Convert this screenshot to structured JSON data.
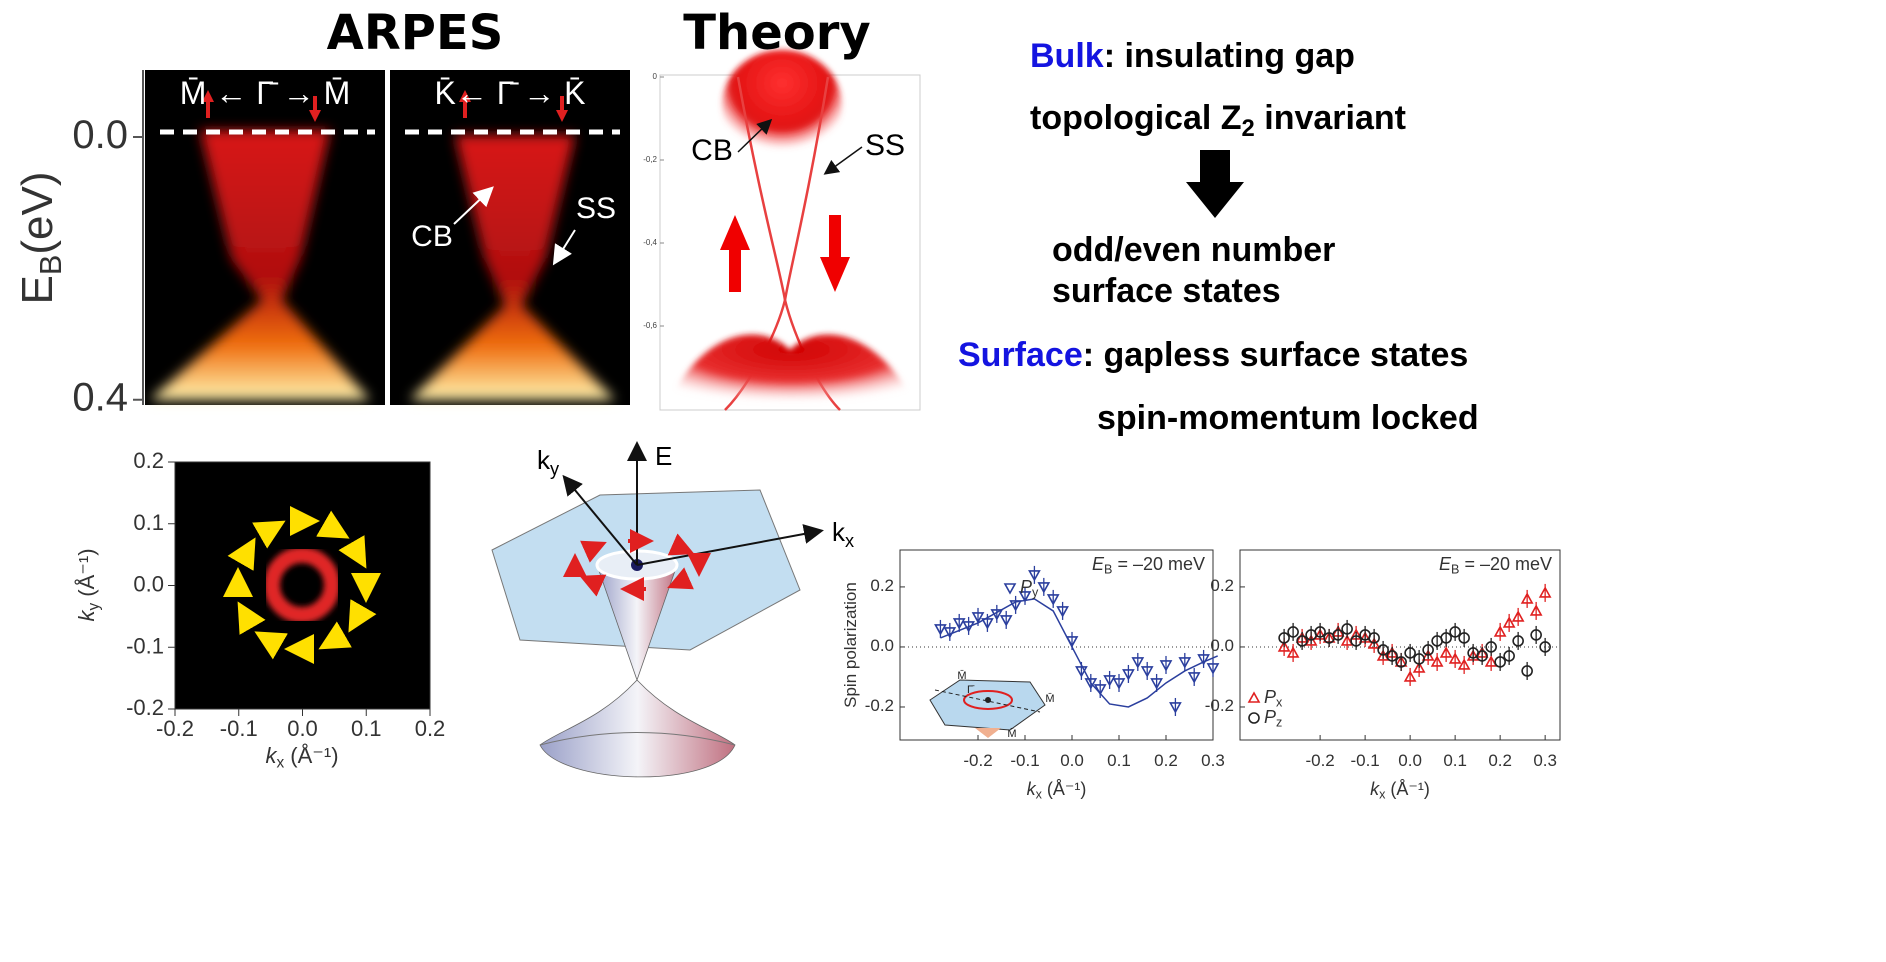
{
  "titles": {
    "arpes": "ARPES",
    "theory": "Theory"
  },
  "arpes": {
    "y_label": [
      "E",
      "B",
      "(eV)"
    ],
    "ylim": [
      -0.102,
      0.408
    ],
    "yticks": [
      {
        "value": 0,
        "label": "0.0"
      },
      {
        "value": 0.4,
        "label": "0.4"
      }
    ],
    "panels": [
      {
        "label": "M̄ ← Γ̄ → M̄"
      },
      {
        "label": "K̄← Γ̄ → K̄",
        "annotations": [
          "CB",
          "SS"
        ]
      }
    ]
  },
  "theory": {
    "annotations": [
      "CB",
      "SS"
    ],
    "ylim": [
      -0.8,
      0
    ],
    "yticks": [
      0,
      {
        "value": -0.2,
        "label": "-0,2"
      },
      {
        "value": -0.4,
        "label": "-0,4"
      },
      {
        "value": -0.6,
        "label": "-0,6"
      }
    ]
  },
  "text_panel": {
    "bulk": {
      "key": "Bulk",
      "rest": ": insulating gap"
    },
    "invariant": [
      "topological Z",
      "2",
      " invariant"
    ],
    "result": [
      "odd/even number",
      "surface states"
    ],
    "surface": {
      "key": "Surface",
      "rest": ": gapless surface states"
    },
    "locked": "spin-momentum locked"
  },
  "fermi_map": {
    "xlim": [
      -0.2,
      0.2
    ],
    "ylim": [
      -0.2,
      0.2
    ],
    "xticks": [
      -0.2,
      -0.1,
      {
        "value": 0,
        "label": "0.0"
      },
      0.1,
      0.2
    ],
    "yticks": [
      -0.2,
      -0.1,
      {
        "value": 0,
        "label": "0.0"
      },
      0.1,
      0.2
    ],
    "x_label": [
      "k",
      "x",
      " (Å⁻¹)"
    ],
    "y_label": [
      "k",
      "y",
      " (Å⁻¹)"
    ]
  },
  "cone": {
    "ky": [
      "k",
      "y"
    ],
    "E": "E",
    "kx": [
      "k",
      "x"
    ]
  },
  "chart_data": [
    {
      "type": "scatter",
      "y_label": "Spin polarization",
      "x_label": [
        "k",
        "x",
        " (Å⁻¹)"
      ],
      "annotation": [
        "E",
        "B",
        " = –20 meV"
      ],
      "xlim": [
        -0.366,
        0.3
      ],
      "ylim": [
        -0.31,
        0.323
      ],
      "xticks": [
        -0.2,
        -0.1,
        {
          "value": 0,
          "label": "0.0"
        },
        0.1,
        0.2,
        0.3
      ],
      "yticks": [
        0.2,
        {
          "value": 0,
          "label": "0.0"
        },
        -0.2
      ],
      "x": [
        -0.28,
        -0.26,
        -0.24,
        -0.22,
        -0.2,
        -0.18,
        -0.16,
        -0.14,
        -0.12,
        -0.1,
        -0.08,
        -0.06,
        -0.04,
        -0.02,
        0,
        0.02,
        0.04,
        0.06,
        0.08,
        0.1,
        0.12,
        0.14,
        0.16,
        0.18,
        0.2,
        0.22,
        0.24,
        0.26,
        0.28,
        0.3
      ],
      "error": 0.03,
      "series": [
        {
          "name": "P",
          "name_sub": "y",
          "color": "#2b3f9e",
          "marker": "triangle-down",
          "values": [
            0.06,
            0.05,
            0.08,
            0.07,
            0.1,
            0.08,
            0.11,
            0.09,
            0.14,
            0.17,
            0.24,
            0.2,
            0.16,
            0.12,
            0.02,
            -0.08,
            -0.12,
            -0.14,
            -0.11,
            -0.12,
            -0.09,
            -0.05,
            -0.08,
            -0.12,
            -0.06,
            -0.2,
            -0.05,
            -0.1,
            -0.04,
            -0.07
          ]
        }
      ],
      "fit": {
        "x": [
          -0.28,
          -0.2,
          -0.12,
          -0.08,
          -0.04,
          0,
          0.04,
          0.08,
          0.12,
          0.16,
          0.2,
          0.24,
          0.28,
          0.31
        ],
        "y": [
          0.03,
          0.08,
          0.15,
          0.16,
          0.12,
          0,
          -0.12,
          -0.19,
          -0.2,
          -0.17,
          -0.12,
          -0.08,
          -0.05,
          -0.03
        ]
      },
      "inset_labels": [
        "M̄",
        "Γ̄",
        "M̄",
        "M̄"
      ]
    },
    {
      "type": "scatter",
      "x_label": [
        "k",
        "x",
        " (Å⁻¹)"
      ],
      "annotation": [
        "E",
        "B",
        " = –20 meV"
      ],
      "xlim": [
        -0.378,
        0.333
      ],
      "ylim": [
        -0.31,
        0.323
      ],
      "xticks": [
        -0.2,
        -0.1,
        {
          "value": 0,
          "label": "0.0"
        },
        0.1,
        0.2,
        0.3
      ],
      "yticks": [
        0.2,
        {
          "value": 0,
          "label": "0.0"
        },
        -0.2
      ],
      "x": [
        -0.28,
        -0.26,
        -0.24,
        -0.22,
        -0.2,
        -0.18,
        -0.16,
        -0.14,
        -0.12,
        -0.1,
        -0.08,
        -0.06,
        -0.04,
        -0.02,
        0,
        0.02,
        0.04,
        0.06,
        0.08,
        0.1,
        0.12,
        0.14,
        0.16,
        0.18,
        0.2,
        0.22,
        0.24,
        0.26,
        0.28,
        0.3
      ],
      "error": 0.03,
      "legend": "lower left",
      "series": [
        {
          "name": "P",
          "name_sub": "x",
          "color": "#e02020",
          "marker": "triangle",
          "values": [
            0,
            -0.02,
            0.03,
            0.02,
            0.04,
            0.03,
            0.05,
            0.02,
            0.04,
            0.03,
            0.01,
            -0.03,
            -0.02,
            -0.05,
            -0.1,
            -0.07,
            -0.03,
            -0.05,
            -0.02,
            -0.04,
            -0.06,
            -0.03,
            -0.02,
            -0.05,
            0.05,
            0.08,
            0.1,
            0.16,
            0.12,
            0.18
          ]
        },
        {
          "name": "P",
          "name_sub": "z",
          "color": "#222222",
          "marker": "circle",
          "values": [
            0.03,
            0.05,
            0.02,
            0.04,
            0.05,
            0.03,
            0.04,
            0.06,
            0.02,
            0.04,
            0.03,
            -0.01,
            -0.03,
            -0.05,
            -0.02,
            -0.04,
            -0.01,
            0.02,
            0.03,
            0.05,
            0.03,
            -0.02,
            -0.03,
            0,
            -0.05,
            -0.03,
            0.02,
            -0.08,
            0.04,
            0
          ]
        }
      ]
    }
  ]
}
